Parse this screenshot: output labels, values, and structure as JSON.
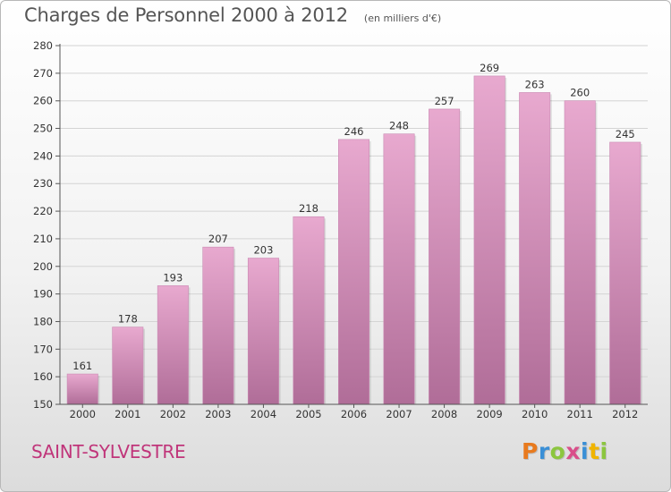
{
  "header": {
    "title": "Charges de Personnel 2000 à 2012",
    "subtitle": "(en milliers d'€)"
  },
  "footer": {
    "commune": "SAINT-SYLVESTRE",
    "brand": [
      "P",
      "r",
      "o",
      "x",
      "i",
      "t",
      "i"
    ],
    "brand_colors": [
      "#e87a1e",
      "#3a8fd6",
      "#8cc63f",
      "#d94f8a",
      "#3a8fd6",
      "#f0b400",
      "#8cc63f"
    ]
  },
  "colors": {
    "bar_top": "#e8a9cf",
    "bar_bottom": "#b06d98",
    "grid": "#d4d4d4",
    "axis": "#555555"
  },
  "chart_data": {
    "type": "bar",
    "categories": [
      "2000",
      "2001",
      "2002",
      "2003",
      "2004",
      "2005",
      "2006",
      "2007",
      "2008",
      "2009",
      "2010",
      "2011",
      "2012"
    ],
    "values": [
      161,
      178,
      193,
      207,
      203,
      218,
      246,
      248,
      257,
      269,
      263,
      260,
      245
    ],
    "title": "Charges de Personnel 2000 à 2012",
    "subtitle": "(en milliers d'€)",
    "ylim": [
      150,
      280
    ],
    "yticks": [
      150,
      160,
      170,
      180,
      190,
      200,
      210,
      220,
      230,
      240,
      250,
      260,
      270,
      280
    ],
    "grid": true,
    "legend": "none"
  }
}
